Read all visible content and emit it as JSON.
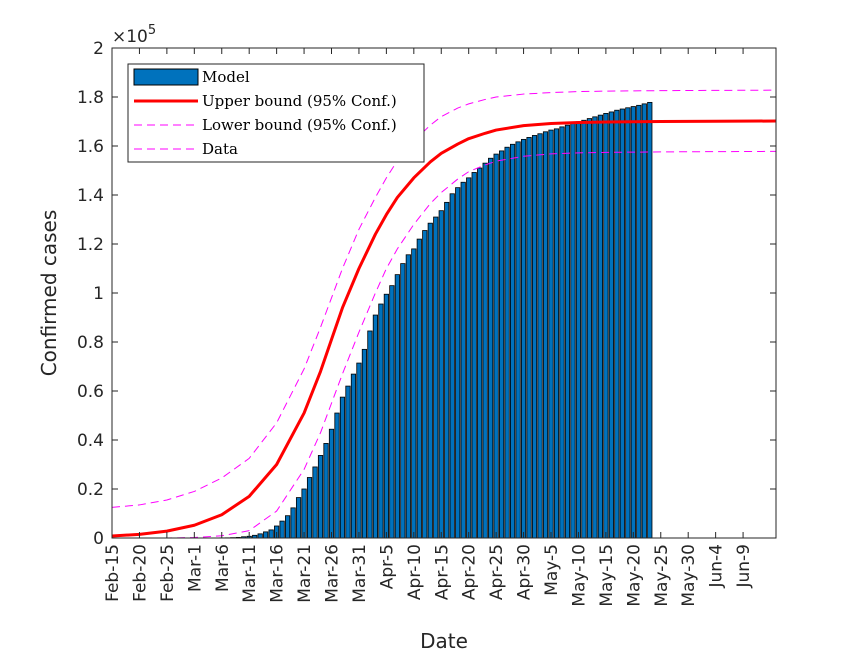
{
  "chart_data": {
    "type": "bar",
    "xlabel": "Date",
    "ylabel": "Confirmed cases",
    "y_exponent_label": "×10",
    "y_exponent_power": "5",
    "y_scale": 100000,
    "ylim": [
      0,
      200000
    ],
    "yticks": [
      0,
      20000,
      40000,
      60000,
      80000,
      100000,
      120000,
      140000,
      160000,
      180000,
      200000
    ],
    "ytick_labels": [
      "0",
      "0.2",
      "0.4",
      "0.6",
      "0.8",
      "1",
      "1.2",
      "1.4",
      "1.6",
      "1.8",
      "2"
    ],
    "x_start_date": "Feb-15",
    "xlim_days": [
      0,
      121
    ],
    "xticks": [
      {
        "day": 0,
        "label": "Feb-15"
      },
      {
        "day": 5,
        "label": "Feb-20"
      },
      {
        "day": 10,
        "label": "Feb-25"
      },
      {
        "day": 15,
        "label": "Mar-1"
      },
      {
        "day": 20,
        "label": "Mar-6"
      },
      {
        "day": 25,
        "label": "Mar-11"
      },
      {
        "day": 30,
        "label": "Mar-16"
      },
      {
        "day": 35,
        "label": "Mar-21"
      },
      {
        "day": 40,
        "label": "Mar-26"
      },
      {
        "day": 45,
        "label": "Mar-31"
      },
      {
        "day": 50,
        "label": "Apr-5"
      },
      {
        "day": 55,
        "label": "Apr-10"
      },
      {
        "day": 60,
        "label": "Apr-15"
      },
      {
        "day": 65,
        "label": "Apr-20"
      },
      {
        "day": 70,
        "label": "Apr-25"
      },
      {
        "day": 75,
        "label": "Apr-30"
      },
      {
        "day": 80,
        "label": "May-5"
      },
      {
        "day": 85,
        "label": "May-10"
      },
      {
        "day": 90,
        "label": "May-15"
      },
      {
        "day": 95,
        "label": "May-20"
      },
      {
        "day": 100,
        "label": "May-25"
      },
      {
        "day": 105,
        "label": "May-30"
      },
      {
        "day": 110,
        "label": "Jun-4"
      },
      {
        "day": 115,
        "label": "Jun-9"
      }
    ],
    "legend": {
      "location": "top-left",
      "entries": [
        "Model",
        "Upper bound (95% Conf.)",
        "Lower bound (95% Conf.)",
        "Data"
      ]
    },
    "series": [
      {
        "name": "Model",
        "kind": "bars",
        "color": "#0072BD",
        "edge_color": "#000000",
        "start_day": 1,
        "values": [
          3,
          3,
          3,
          3,
          3,
          3,
          3,
          3,
          3,
          3,
          3,
          3,
          3,
          3,
          3,
          4,
          10,
          20,
          30,
          60,
          80,
          150,
          250,
          500,
          700,
          1100,
          1700,
          2500,
          3300,
          4900,
          6900,
          9100,
          12300,
          16500,
          20000,
          24700,
          29000,
          33700,
          38600,
          44400,
          51000,
          57500,
          62000,
          66900,
          71400,
          77000,
          84500,
          91000,
          95500,
          99500,
          103000,
          107500,
          112000,
          115600,
          118000,
          122000,
          125500,
          128500,
          131000,
          133600,
          137000,
          140500,
          143000,
          145200,
          147000,
          149200,
          151000,
          153000,
          155000,
          156700,
          158000,
          159500,
          160700,
          161700,
          162700,
          163500,
          164300,
          165000,
          165800,
          166500,
          167000,
          167800,
          168500,
          169300,
          169900,
          170500,
          171200,
          171900,
          172600,
          173300,
          173900,
          174600,
          175100,
          175600,
          176100,
          176600,
          177200,
          177800
        ]
      },
      {
        "name": "Upper bound (95% Conf.)",
        "kind": "line",
        "color": "#FF0000",
        "line_style": "solid",
        "width": 3,
        "x": [
          0,
          5,
          10,
          15,
          20,
          25,
          30,
          35,
          38,
          40,
          42,
          45,
          48,
          50,
          52,
          55,
          58,
          60,
          63,
          65,
          68,
          70,
          75,
          80,
          85,
          90,
          95,
          100,
          110,
          121
        ],
        "y": [
          800,
          1500,
          2800,
          5200,
          9500,
          17000,
          30000,
          51000,
          68000,
          81000,
          94000,
          110000,
          124000,
          132000,
          139000,
          147000,
          153500,
          157000,
          160800,
          163000,
          165200,
          166500,
          168300,
          169200,
          169600,
          169800,
          169900,
          170000,
          170100,
          170200
        ]
      },
      {
        "name": "Lower bound (95% Conf.)",
        "kind": "line",
        "color": "#FF00FF",
        "line_style": "dashed",
        "width": 1,
        "x": [
          0,
          5,
          10,
          15,
          20,
          25,
          30,
          35,
          38,
          40,
          42,
          45,
          48,
          50,
          52,
          55,
          58,
          60,
          63,
          65,
          68,
          70,
          75,
          80,
          85,
          90,
          95,
          100,
          110,
          121
        ],
        "y": [
          12500,
          13500,
          15500,
          19000,
          24500,
          32500,
          47000,
          69000,
          86000,
          98000,
          110000,
          126000,
          139000,
          147000,
          154000,
          162000,
          168500,
          172000,
          175500,
          177200,
          179000,
          180000,
          181200,
          181800,
          182200,
          182400,
          182500,
          182600,
          182700,
          182800
        ]
      },
      {
        "name": "Data",
        "kind": "line",
        "color": "#FF00FF",
        "line_style": "dashed",
        "width": 1,
        "x": [
          0,
          5,
          10,
          15,
          20,
          25,
          30,
          35,
          38,
          40,
          42,
          45,
          48,
          50,
          52,
          55,
          58,
          60,
          63,
          65,
          68,
          70,
          75,
          80,
          85,
          90,
          95,
          100,
          110,
          121
        ],
        "y": [
          0,
          0,
          0,
          200,
          900,
          3000,
          11000,
          28000,
          43000,
          55000,
          67000,
          84000,
          100000,
          110000,
          118000,
          128000,
          136500,
          141000,
          146500,
          149500,
          152300,
          153800,
          155800,
          156800,
          157200,
          157400,
          157500,
          157600,
          157700,
          157800
        ]
      }
    ]
  }
}
